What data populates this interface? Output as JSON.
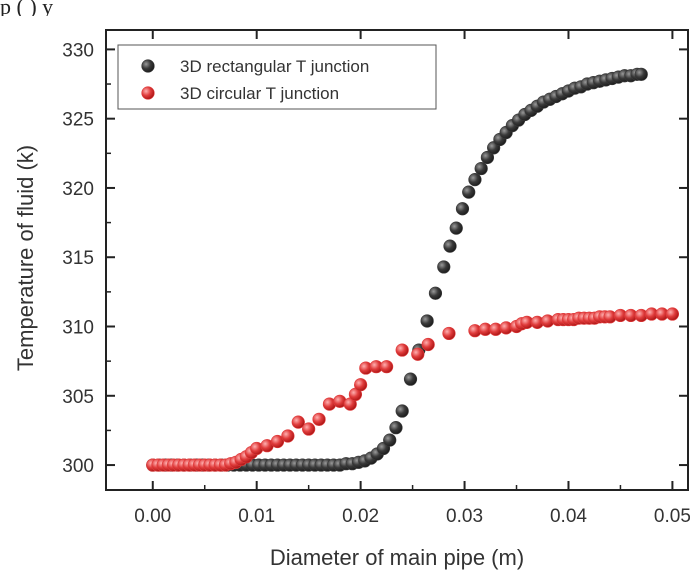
{
  "top_text": "p                                 (                    )   y",
  "chart_data": {
    "type": "scatter",
    "title": "",
    "xlabel": "Diameter of main pipe (m)",
    "ylabel": "Temperature of fluid (k)",
    "xlim": [
      -0.0045,
      0.0515
    ],
    "ylim": [
      298.2,
      331.4
    ],
    "xticks": [
      0.0,
      0.01,
      0.02,
      0.03,
      0.04,
      0.05
    ],
    "xtick_labels": [
      "0.00",
      "0.01",
      "0.02",
      "0.03",
      "0.04",
      "0.05"
    ],
    "yticks": [
      300,
      305,
      310,
      315,
      320,
      325,
      330
    ],
    "ytick_labels": [
      "300",
      "305",
      "310",
      "315",
      "320",
      "325",
      "330"
    ],
    "grid": false,
    "legend_position": "top-left",
    "series": [
      {
        "name": "3D rectangular T junction",
        "color": "#3a3a3a",
        "x": [
          0.0,
          0.0006,
          0.0012,
          0.0018,
          0.0024,
          0.003,
          0.0036,
          0.0042,
          0.0048,
          0.0054,
          0.006,
          0.0066,
          0.0072,
          0.0078,
          0.0084,
          0.009,
          0.0096,
          0.0102,
          0.0108,
          0.0114,
          0.012,
          0.0126,
          0.0132,
          0.0138,
          0.0144,
          0.015,
          0.0156,
          0.0162,
          0.0168,
          0.0174,
          0.018,
          0.0186,
          0.0192,
          0.0198,
          0.0204,
          0.021,
          0.0216,
          0.0222,
          0.0228,
          0.0234,
          0.024,
          0.0248,
          0.0256,
          0.0264,
          0.0272,
          0.028,
          0.0286,
          0.0292,
          0.0298,
          0.0304,
          0.031,
          0.0316,
          0.0322,
          0.0328,
          0.0334,
          0.034,
          0.0346,
          0.0352,
          0.0358,
          0.0364,
          0.037,
          0.0376,
          0.0382,
          0.0388,
          0.0394,
          0.04,
          0.0406,
          0.0412,
          0.0418,
          0.0424,
          0.043,
          0.0436,
          0.0442,
          0.0448,
          0.0454,
          0.046,
          0.0466,
          0.047
        ],
        "y": [
          300.0,
          300.0,
          300.0,
          300.0,
          300.0,
          300.0,
          300.0,
          300.0,
          300.0,
          300.0,
          300.0,
          300.0,
          300.0,
          300.0,
          300.0,
          300.0,
          300.0,
          300.0,
          300.0,
          300.0,
          300.0,
          300.0,
          300.0,
          300.0,
          300.0,
          300.0,
          300.0,
          300.0,
          300.0,
          300.0,
          300.0,
          300.1,
          300.1,
          300.2,
          300.3,
          300.5,
          300.8,
          301.2,
          301.8,
          302.7,
          303.9,
          306.2,
          308.3,
          310.4,
          312.4,
          314.3,
          315.8,
          317.1,
          318.5,
          319.7,
          320.6,
          321.4,
          322.2,
          322.9,
          323.5,
          324.0,
          324.5,
          324.9,
          325.3,
          325.6,
          325.9,
          326.2,
          326.4,
          326.6,
          326.8,
          327.0,
          327.2,
          327.3,
          327.5,
          327.6,
          327.7,
          327.8,
          327.9,
          328.0,
          328.1,
          328.1,
          328.2,
          328.2
        ]
      },
      {
        "name": "3D circular T junction",
        "color": "#e03c3c",
        "x": [
          0.0,
          0.0005,
          0.001,
          0.0015,
          0.002,
          0.0025,
          0.003,
          0.0035,
          0.004,
          0.0045,
          0.005,
          0.0055,
          0.006,
          0.0065,
          0.007,
          0.0075,
          0.008,
          0.0085,
          0.009,
          0.0095,
          0.01,
          0.011,
          0.012,
          0.013,
          0.014,
          0.015,
          0.016,
          0.017,
          0.018,
          0.019,
          0.0195,
          0.02,
          0.0205,
          0.0215,
          0.0225,
          0.024,
          0.0255,
          0.0265,
          0.0285,
          0.031,
          0.032,
          0.033,
          0.034,
          0.035,
          0.0355,
          0.036,
          0.037,
          0.038,
          0.039,
          0.0395,
          0.04,
          0.0405,
          0.041,
          0.0415,
          0.042,
          0.0425,
          0.043,
          0.0435,
          0.044,
          0.045,
          0.046,
          0.047,
          0.048,
          0.049,
          0.05
        ],
        "y": [
          300.0,
          300.0,
          300.0,
          300.0,
          300.0,
          300.0,
          300.0,
          300.0,
          300.0,
          300.0,
          300.0,
          300.0,
          300.0,
          300.0,
          300.0,
          300.1,
          300.2,
          300.4,
          300.6,
          300.9,
          301.2,
          301.4,
          301.7,
          302.1,
          303.1,
          302.6,
          303.3,
          304.4,
          304.6,
          304.4,
          305.1,
          305.8,
          307.0,
          307.1,
          307.1,
          308.3,
          308.0,
          308.7,
          309.5,
          309.7,
          309.8,
          309.8,
          309.9,
          310.0,
          310.2,
          310.3,
          310.3,
          310.4,
          310.5,
          310.5,
          310.5,
          310.5,
          310.6,
          310.6,
          310.6,
          310.6,
          310.7,
          310.7,
          310.7,
          310.8,
          310.8,
          310.8,
          310.9,
          310.9,
          310.9
        ]
      }
    ]
  }
}
